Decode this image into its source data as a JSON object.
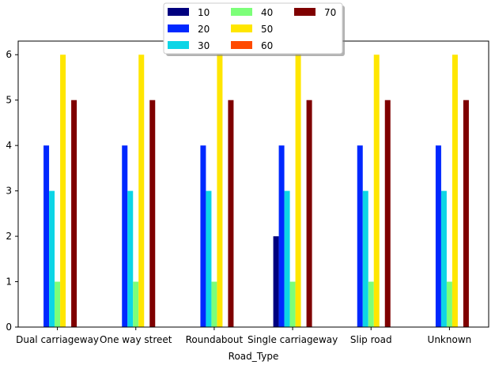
{
  "chart_data": {
    "type": "bar",
    "xlabel": "Road_Type",
    "ylabel": "",
    "ylim": [
      0,
      6.3
    ],
    "yticks": [
      0,
      1,
      2,
      3,
      4,
      5,
      6
    ],
    "categories": [
      "Dual carriageway",
      "One way street",
      "Roundabout",
      "Single carriageway",
      "Slip road",
      "Unknown"
    ],
    "legend_position": "top-center",
    "legend_columns": 3,
    "series": [
      {
        "name": "10",
        "color": "#00007f",
        "values": [
          0,
          0,
          0,
          2,
          0,
          0
        ]
      },
      {
        "name": "20",
        "color": "#0028ff",
        "values": [
          4,
          4,
          4,
          4,
          4,
          4
        ]
      },
      {
        "name": "30",
        "color": "#0dd5e6",
        "values": [
          3,
          3,
          3,
          3,
          3,
          3
        ]
      },
      {
        "name": "40",
        "color": "#7cff79",
        "values": [
          1,
          1,
          1,
          1,
          1,
          1
        ]
      },
      {
        "name": "50",
        "color": "#ffe600",
        "values": [
          6,
          6,
          6,
          6,
          6,
          6
        ]
      },
      {
        "name": "60",
        "color": "#ff4a00",
        "values": [
          0,
          0,
          0,
          0,
          0,
          0
        ]
      },
      {
        "name": "70",
        "color": "#7f0000",
        "values": [
          5,
          5,
          5,
          5,
          5,
          5
        ]
      }
    ]
  }
}
